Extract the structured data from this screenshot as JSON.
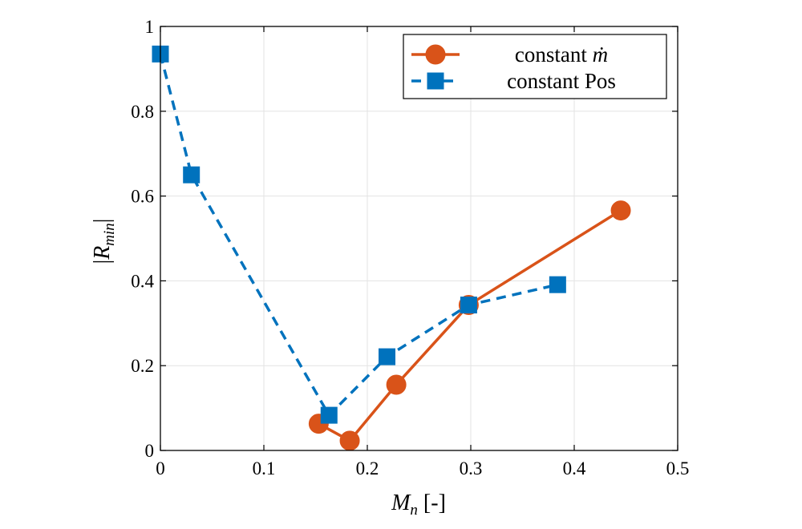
{
  "chart_data": {
    "type": "line",
    "xlabel": "M_n [-]",
    "ylabel": "|R_min|",
    "xlim": [
      0,
      0.5
    ],
    "ylim": [
      0,
      1
    ],
    "xticks": [
      0,
      0.1,
      0.2,
      0.3,
      0.4,
      0.5
    ],
    "yticks": [
      0,
      0.2,
      0.4,
      0.6,
      0.8,
      1
    ],
    "xtick_labels": [
      "0",
      "0.1",
      "0.2",
      "0.3",
      "0.4",
      "0.5"
    ],
    "ytick_labels": [
      "0",
      "0.2",
      "0.4",
      "0.6",
      "0.8",
      "1"
    ],
    "grid": true,
    "legend_position": "top-right",
    "series": [
      {
        "name": "constant ṁ",
        "color": "#D95319",
        "marker": "circle",
        "line_style": "solid",
        "x": [
          0.153,
          0.183,
          0.228,
          0.298,
          0.445
        ],
        "y": [
          0.063,
          0.023,
          0.155,
          0.343,
          0.566
        ]
      },
      {
        "name": "constant Pos",
        "color": "#0072BD",
        "marker": "square",
        "line_style": "dashed",
        "x": [
          0.0,
          0.03,
          0.163,
          0.219,
          0.298,
          0.384
        ],
        "y": [
          0.935,
          0.65,
          0.083,
          0.221,
          0.343,
          0.391
        ]
      }
    ]
  }
}
